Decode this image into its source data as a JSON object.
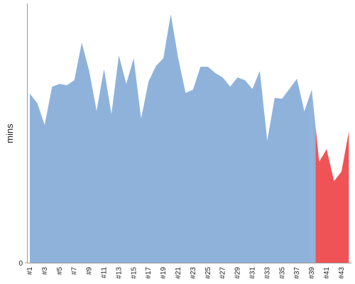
{
  "chart_data": {
    "type": "area",
    "ylabel": "mins",
    "categories": [
      "#1",
      null,
      "#3",
      null,
      "#5",
      null,
      "#7",
      null,
      "#9",
      null,
      "#11",
      null,
      "#13",
      null,
      "#15",
      null,
      "#17",
      null,
      "#19",
      null,
      "#21",
      null,
      "#23",
      null,
      "#25",
      null,
      "#27",
      null,
      "#29",
      null,
      "#31",
      null,
      "#33",
      null,
      "#35",
      null,
      "#37",
      null,
      "#39",
      null,
      "#41",
      null,
      "#43",
      null
    ],
    "series": [
      {
        "color": "#8fb2db",
        "values": [
          65.2,
          61.6,
          53.2,
          67.9,
          69.0,
          68.5,
          70.4,
          84.9,
          74.0,
          58.6,
          74.8,
          57.3,
          80.0,
          69.0,
          78.9,
          55.6,
          69.9,
          75.9,
          78.9,
          95.9,
          78.9,
          65.5,
          66.8,
          75.6,
          75.6,
          73.2,
          71.5,
          67.9,
          71.5,
          70.4,
          67.1,
          74.0,
          47.1,
          63.6,
          63.3,
          67.1,
          71.0,
          58.4,
          66.8,
          null,
          null,
          null,
          null,
          null
        ]
      },
      {
        "color": "#f05356",
        "values": [
          null,
          null,
          null,
          null,
          null,
          null,
          null,
          null,
          null,
          null,
          null,
          null,
          null,
          null,
          null,
          null,
          null,
          null,
          null,
          null,
          null,
          null,
          null,
          null,
          null,
          null,
          null,
          null,
          null,
          null,
          null,
          null,
          null,
          null,
          null,
          null,
          null,
          null,
          null,
          38.9,
          43.8,
          31.5,
          35.1,
          50.7
        ]
      }
    ],
    "ylim": [
      0,
      100
    ],
    "yticks": [
      0
    ]
  }
}
